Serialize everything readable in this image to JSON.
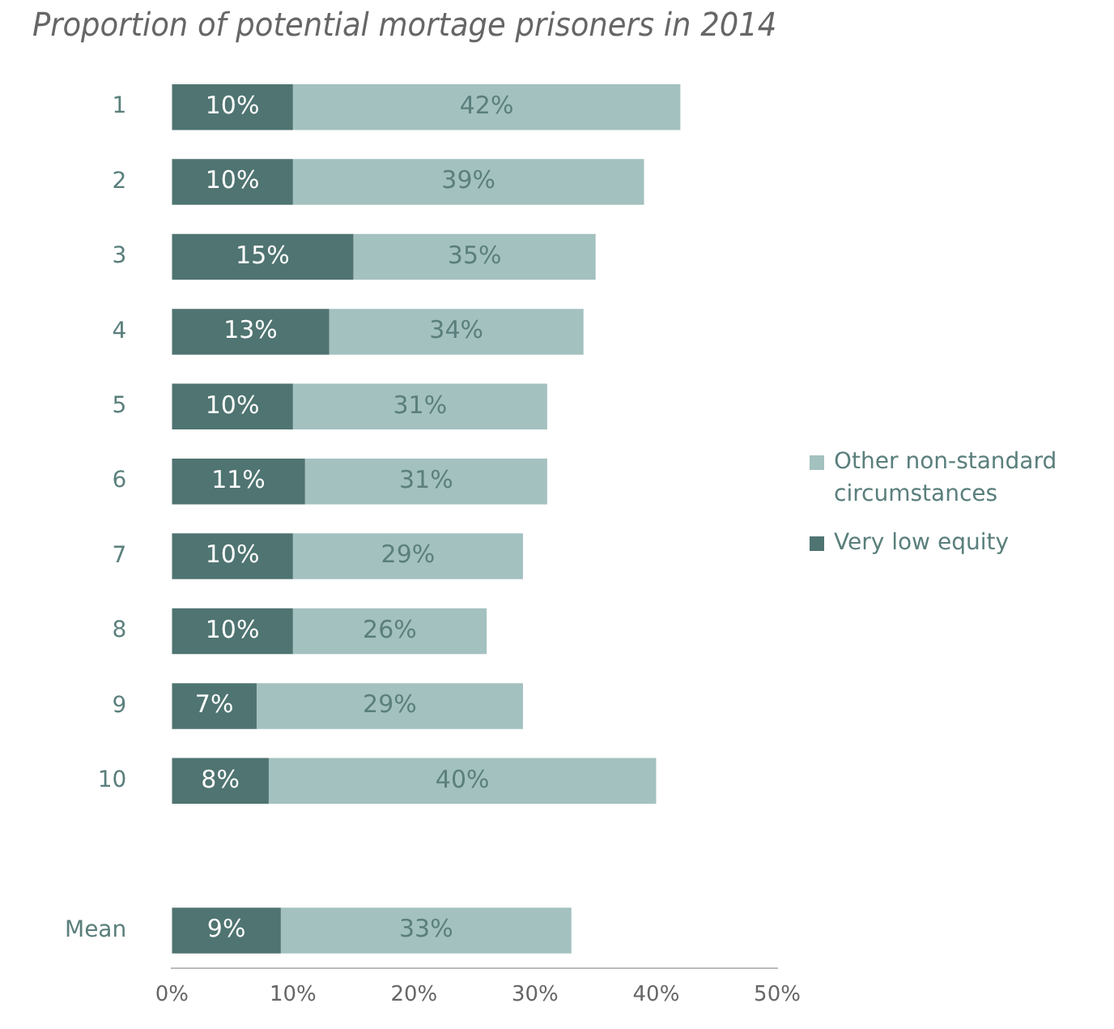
{
  "chart_data": {
    "type": "bar",
    "orientation": "horizontal",
    "stacked": true,
    "title": "Proportion of potential mortage prisoners in 2014",
    "categories": [
      "1",
      "2",
      "3",
      "4",
      "5",
      "6",
      "7",
      "8",
      "9",
      "10",
      null,
      "Mean"
    ],
    "series": [
      {
        "name": "Very low equity",
        "color": "#4f7471",
        "values": [
          10,
          10,
          15,
          13,
          10,
          11,
          10,
          10,
          7,
          8,
          null,
          9
        ],
        "value_labels": [
          "10%",
          "10%",
          "15%",
          "13%",
          "10%",
          "11%",
          "10%",
          "10%",
          "7%",
          "8%",
          null,
          "9%"
        ]
      },
      {
        "name": "Other non-standard circumstances",
        "color": "#a3c1bf",
        "values": [
          32,
          29,
          20,
          21,
          21,
          20,
          19,
          16,
          22,
          32,
          null,
          24
        ]
      }
    ],
    "totals": [
      "42%",
      "39%",
      "35%",
      "34%",
      "31%",
      "31%",
      "29%",
      "26%",
      "29%",
      "40%",
      null,
      "33%"
    ],
    "xlim": [
      0,
      50
    ],
    "xticks": [
      {
        "value": 0,
        "label": "0%"
      },
      {
        "value": 10,
        "label": "10%"
      },
      {
        "value": 20,
        "label": "20%"
      },
      {
        "value": 30,
        "label": "30%"
      },
      {
        "value": 40,
        "label": "40%"
      },
      {
        "value": 50,
        "label": "50%"
      }
    ],
    "grid": false,
    "legend": "right"
  }
}
